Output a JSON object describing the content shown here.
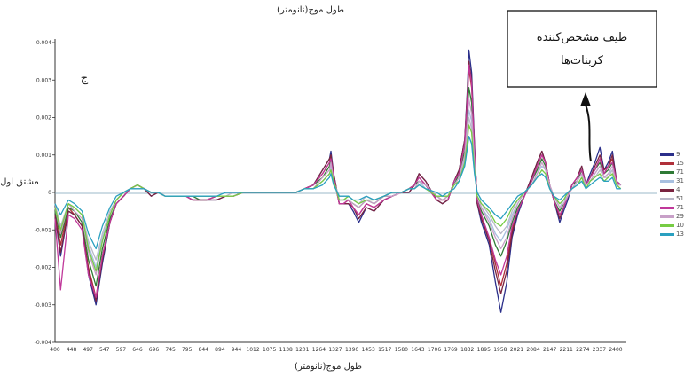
{
  "chart_data": {
    "type": "line",
    "top_caption": "طول موج(نانومتر)",
    "xlabel": "طول موج(نانومتر)",
    "ylabel": "مشتق اول",
    "panel_label": "ج",
    "annotation": [
      "طیف مشخص‌کننده",
      "کربنات‌ها"
    ],
    "xlim": [
      400,
      2450
    ],
    "ylim": [
      -0.004,
      0.004
    ],
    "x_ticks": [
      "400",
      "448",
      "497",
      "547",
      "597",
      "646",
      "696",
      "745",
      "795",
      "844",
      "894",
      "944",
      "1012",
      "1075",
      "1138",
      "1201",
      "1264",
      "1327",
      "1390",
      "1453",
      "1517",
      "1580",
      "1643",
      "1706",
      "1769",
      "1832",
      "1895",
      "1958",
      "2021",
      "2084",
      "2147",
      "2211",
      "2274",
      "2337",
      "2400"
    ],
    "y_ticks": [
      "0.004",
      "0.003",
      "0.002",
      "0.001",
      "0",
      "-0.001",
      "-0.002",
      "-0.003",
      "-0.004"
    ],
    "legend_entries": [
      "9",
      "15",
      "71",
      "31",
      "4",
      "51",
      "71",
      "29",
      "10",
      "13"
    ],
    "colors": [
      "#2b2f8a",
      "#b0303a",
      "#2f7a35",
      "#a8c0e0",
      "#7a2440",
      "#b8b8c8",
      "#c0389a",
      "#c8a0c8",
      "#77cc44",
      "#2aa0c0"
    ],
    "shared_x": [
      400,
      420,
      448,
      470,
      497,
      520,
      547,
      570,
      597,
      620,
      646,
      670,
      696,
      720,
      745,
      770,
      795,
      820,
      844,
      870,
      894,
      920,
      944,
      980,
      1012,
      1040,
      1075,
      1105,
      1138,
      1170,
      1201,
      1230,
      1264,
      1295,
      1327,
      1360,
      1385,
      1390,
      1400,
      1420,
      1435,
      1453,
      1470,
      1490,
      1517,
      1545,
      1580,
      1610,
      1643,
      1670,
      1690,
      1706,
      1730,
      1769,
      1790,
      1810,
      1832,
      1850,
      1870,
      1880,
      1885,
      1895,
      1905,
      1915,
      1930,
      1958,
      1980,
      2000,
      2021,
      2040,
      2060,
      2084,
      2110,
      2130,
      2147,
      2160,
      2175,
      2190,
      2211,
      2225,
      2240,
      2255,
      2274,
      2290,
      2305,
      2320,
      2337,
      2355,
      2370,
      2385,
      2400,
      2415,
      2430
    ],
    "series": [
      {
        "values": [
          -0.0006,
          -0.0017,
          -0.0005,
          -0.0006,
          -0.0009,
          -0.0022,
          -0.003,
          -0.0019,
          -0.0008,
          -0.0003,
          -0.0001,
          0.0001,
          0.0002,
          0.0001,
          -0.0001,
          0.0,
          -0.0001,
          -0.0001,
          -0.0001,
          -0.0001,
          -0.0002,
          -0.0002,
          -0.0002,
          -0.0002,
          -0.0001,
          -0.0001,
          0.0,
          0.0,
          0.0,
          0.0,
          0.0,
          0.0,
          0.0,
          0.0001,
          0.0002,
          0.0006,
          0.0009,
          0.0011,
          0.0005,
          -0.0003,
          -0.0003,
          -0.0003,
          -0.0005,
          -0.0008,
          -0.0004,
          -0.0005,
          -0.0002,
          -0.0001,
          0.0,
          0.0,
          0.0002,
          0.0005,
          0.0003,
          -0.0002,
          -0.0003,
          -0.0002,
          0.0003,
          0.0006,
          0.0014,
          0.0028,
          0.0038,
          0.0032,
          0.0013,
          -0.0003,
          -0.0008,
          -0.0014,
          -0.0024,
          -0.0032,
          -0.0024,
          -0.0012,
          -0.0006,
          -0.0001,
          0.0004,
          0.0008,
          0.0011,
          0.0008,
          0.0002,
          -0.0002,
          -0.0008,
          -0.0005,
          -0.0002,
          0.0002,
          0.0004,
          0.0007,
          0.0002,
          0.0005,
          0.0008,
          0.0012,
          0.0006,
          0.0008,
          0.0011,
          0.0003,
          0.0002
        ]
      },
      {
        "values": [
          -0.0006,
          -0.0014,
          -0.0004,
          -0.0006,
          -0.0009,
          -0.002,
          -0.0028,
          -0.0017,
          -0.0008,
          -0.0003,
          -0.0001,
          0.0001,
          0.0002,
          0.0001,
          0.0,
          0.0,
          -0.0001,
          -0.0001,
          -0.0001,
          -0.0001,
          -0.0002,
          -0.0002,
          -0.0002,
          -0.0001,
          -0.0001,
          -0.0001,
          0.0,
          0.0,
          0.0,
          0.0,
          0.0,
          0.0,
          0.0,
          0.0001,
          0.0002,
          0.0005,
          0.0008,
          0.001,
          0.0004,
          -0.0003,
          -0.0003,
          -0.0002,
          -0.0004,
          -0.0006,
          -0.0003,
          -0.0004,
          -0.0002,
          -0.0001,
          0.0,
          0.0001,
          0.0002,
          0.0004,
          0.0002,
          -0.0002,
          -0.0002,
          -0.0002,
          0.0003,
          0.0005,
          0.0013,
          0.0026,
          0.0033,
          0.0028,
          0.0011,
          -0.0002,
          -0.0007,
          -0.0012,
          -0.0019,
          -0.0025,
          -0.0019,
          -0.001,
          -0.0005,
          -0.0001,
          0.0003,
          0.0007,
          0.001,
          0.0008,
          0.0002,
          -0.0002,
          -0.0006,
          -0.0004,
          -0.0001,
          0.0002,
          0.0004,
          0.0006,
          0.0002,
          0.0004,
          0.0006,
          0.0009,
          0.0005,
          0.0007,
          0.0009,
          0.0003,
          0.0002
        ]
      },
      {
        "values": [
          -0.0005,
          -0.0012,
          -0.0004,
          -0.0005,
          -0.0008,
          -0.0018,
          -0.0025,
          -0.0015,
          -0.0007,
          -0.0003,
          -0.0001,
          0.0001,
          0.0002,
          0.0001,
          0.0,
          0.0,
          -0.0001,
          -0.0001,
          -0.0001,
          -0.0001,
          -0.0001,
          -0.0002,
          -0.0002,
          -0.0001,
          -0.0001,
          -0.0001,
          0.0,
          0.0,
          0.0,
          0.0,
          0.0,
          0.0,
          0.0,
          0.0001,
          0.0002,
          0.0004,
          0.0007,
          0.0009,
          0.0004,
          -0.0002,
          -0.0002,
          -0.0002,
          -0.0003,
          -0.0004,
          -0.0002,
          -0.0003,
          -0.0001,
          -0.0001,
          0.0,
          0.0001,
          0.0002,
          0.0003,
          0.0002,
          -0.0001,
          -0.0002,
          -0.0001,
          0.0002,
          0.0005,
          0.0011,
          0.0022,
          0.0028,
          0.0024,
          0.0009,
          -0.0002,
          -0.0005,
          -0.0009,
          -0.0014,
          -0.0017,
          -0.0013,
          -0.0008,
          -0.0004,
          -0.0001,
          0.0003,
          0.0006,
          0.0009,
          0.0007,
          0.0002,
          -0.0002,
          -0.0005,
          -0.0003,
          -0.0001,
          0.0002,
          0.0003,
          0.0006,
          0.0002,
          0.0004,
          0.0006,
          0.0008,
          0.0005,
          0.0006,
          0.0008,
          0.0003,
          0.0002
        ]
      },
      {
        "values": [
          -0.0004,
          -0.001,
          -0.0003,
          -0.0004,
          -0.0006,
          -0.0014,
          -0.002,
          -0.0012,
          -0.0006,
          -0.0002,
          0.0,
          0.0001,
          0.0002,
          0.0001,
          0.0,
          0.0,
          -0.0001,
          -0.0001,
          -0.0001,
          -0.0001,
          -0.0001,
          -0.0001,
          -0.0001,
          -0.0001,
          -0.0001,
          -0.0001,
          0.0,
          0.0,
          0.0,
          0.0,
          0.0,
          0.0,
          0.0,
          0.0001,
          0.0001,
          0.0003,
          0.0005,
          0.0007,
          0.0003,
          -0.0002,
          -0.0002,
          -0.0001,
          -0.0002,
          -0.0003,
          -0.0002,
          -0.0002,
          -0.0001,
          0.0,
          0.0,
          0.0001,
          0.0001,
          0.0003,
          0.0001,
          -0.0001,
          -0.0001,
          -0.0001,
          0.0002,
          0.0004,
          0.0009,
          0.0017,
          0.0022,
          0.0019,
          0.0007,
          -0.0001,
          -0.0004,
          -0.0007,
          -0.0011,
          -0.0013,
          -0.001,
          -0.0006,
          -0.0003,
          0.0,
          0.0002,
          0.0005,
          0.0007,
          0.0006,
          0.0002,
          -0.0001,
          -0.0004,
          -0.0002,
          -0.0001,
          0.0001,
          0.0003,
          0.0005,
          0.0002,
          0.0003,
          0.0005,
          0.0007,
          0.0004,
          0.0005,
          0.0006,
          0.0002,
          0.0002
        ]
      },
      {
        "values": [
          -0.0006,
          -0.0016,
          -0.0005,
          -0.0006,
          -0.0009,
          -0.0021,
          -0.0029,
          -0.0018,
          -0.0008,
          -0.0003,
          -0.0001,
          0.0001,
          0.0002,
          0.0001,
          -0.0001,
          0.0,
          -0.0001,
          -0.0001,
          -0.0001,
          -0.0001,
          -0.0002,
          -0.0002,
          -0.0002,
          -0.0002,
          -0.0001,
          -0.0001,
          0.0,
          0.0,
          0.0,
          0.0,
          0.0,
          0.0,
          0.0,
          0.0001,
          0.0002,
          0.0006,
          0.0009,
          0.001,
          0.0005,
          -0.0003,
          -0.0003,
          -0.0003,
          -0.0004,
          -0.0007,
          -0.0004,
          -0.0005,
          -0.0002,
          -0.0001,
          0.0,
          0.0,
          0.0002,
          0.0005,
          0.0003,
          -0.0002,
          -0.0003,
          -0.0002,
          0.0003,
          0.0006,
          0.0014,
          0.0027,
          0.0035,
          0.003,
          0.0012,
          -0.0003,
          -0.0007,
          -0.0013,
          -0.0021,
          -0.0027,
          -0.0021,
          -0.0011,
          -0.0005,
          -0.0001,
          0.0004,
          0.0008,
          0.0011,
          0.0008,
          0.0002,
          -0.0002,
          -0.0007,
          -0.0004,
          -0.0001,
          0.0002,
          0.0004,
          0.0007,
          0.0002,
          0.0004,
          0.0007,
          0.001,
          0.0006,
          0.0007,
          0.001,
          0.0003,
          0.0002
        ]
      },
      {
        "values": [
          -0.0003,
          -0.0009,
          -0.0003,
          -0.0004,
          -0.0006,
          -0.0013,
          -0.0018,
          -0.0011,
          -0.0005,
          -0.0002,
          0.0,
          0.0001,
          0.0001,
          0.0001,
          0.0,
          0.0,
          -0.0001,
          -0.0001,
          -0.0001,
          -0.0001,
          -0.0001,
          -0.0001,
          -0.0001,
          -0.0001,
          -0.0001,
          0.0,
          0.0,
          0.0,
          0.0,
          0.0,
          0.0,
          0.0,
          0.0,
          0.0001,
          0.0001,
          0.0003,
          0.0005,
          0.0006,
          0.0003,
          -0.0001,
          -0.0001,
          -0.0001,
          -0.0002,
          -0.0003,
          -0.0001,
          -0.0002,
          -0.0001,
          0.0,
          0.0,
          0.0001,
          0.0001,
          0.0002,
          0.0001,
          -0.0001,
          -0.0001,
          -0.0001,
          0.0002,
          0.0003,
          0.0008,
          0.0015,
          0.002,
          0.0017,
          0.0006,
          -0.0001,
          -0.0003,
          -0.0006,
          -0.0009,
          -0.0011,
          -0.0009,
          -0.0005,
          -0.0002,
          0.0,
          0.0002,
          0.0004,
          0.0006,
          0.0005,
          0.0002,
          -0.0001,
          -0.0003,
          -0.0002,
          0.0,
          0.0001,
          0.0002,
          0.0004,
          0.0001,
          0.0003,
          0.0004,
          0.0006,
          0.0004,
          0.0004,
          0.0006,
          0.0002,
          0.0001
        ]
      },
      {
        "values": [
          -0.0007,
          -0.0026,
          -0.0006,
          -0.0007,
          -0.001,
          -0.0022,
          -0.0028,
          -0.0017,
          -0.0008,
          -0.0003,
          -0.0001,
          0.0001,
          0.0002,
          0.0001,
          0.0,
          0.0,
          -0.0001,
          -0.0001,
          -0.0001,
          -0.0001,
          -0.0002,
          -0.0002,
          -0.0002,
          -0.0001,
          -0.0001,
          -0.0001,
          0.0,
          0.0,
          0.0,
          0.0,
          0.0,
          0.0,
          0.0,
          0.0001,
          0.0002,
          0.0005,
          0.0008,
          0.0009,
          0.0004,
          -0.0003,
          -0.0003,
          -0.0002,
          -0.0004,
          -0.0006,
          -0.0003,
          -0.0004,
          -0.0002,
          -0.0001,
          0.0,
          0.0001,
          0.0002,
          0.0004,
          0.0002,
          -0.0002,
          -0.0002,
          -0.0002,
          0.0003,
          0.0005,
          0.0013,
          0.0025,
          0.0034,
          0.0029,
          0.0011,
          -0.0002,
          -0.0006,
          -0.0012,
          -0.0018,
          -0.0022,
          -0.0017,
          -0.0009,
          -0.0005,
          -0.0001,
          0.0003,
          0.0007,
          0.001,
          0.0008,
          0.0002,
          -0.0002,
          -0.0006,
          -0.0004,
          -0.0001,
          0.0002,
          0.0004,
          0.0006,
          0.0002,
          0.0004,
          0.0006,
          0.0009,
          0.0005,
          0.0007,
          0.0008,
          0.0003,
          0.0002
        ]
      },
      {
        "values": [
          -0.0004,
          -0.0011,
          -0.0003,
          -0.0005,
          -0.0007,
          -0.0016,
          -0.0022,
          -0.0013,
          -0.0006,
          -0.0002,
          0.0,
          0.0001,
          0.0002,
          0.0001,
          0.0,
          0.0,
          -0.0001,
          -0.0001,
          -0.0001,
          -0.0001,
          -0.0001,
          -0.0001,
          -0.0001,
          -0.0001,
          -0.0001,
          -0.0001,
          0.0,
          0.0,
          0.0,
          0.0,
          0.0,
          0.0,
          0.0,
          0.0001,
          0.0001,
          0.0004,
          0.0006,
          0.0008,
          0.0003,
          -0.0002,
          -0.0002,
          -0.0002,
          -0.0003,
          -0.0004,
          -0.0002,
          -0.0003,
          -0.0001,
          -0.0001,
          0.0,
          0.0001,
          0.0001,
          0.0003,
          0.0002,
          -0.0001,
          -0.0002,
          -0.0001,
          0.0002,
          0.0004,
          0.001,
          0.0019,
          0.0025,
          0.0021,
          0.0008,
          -0.0001,
          -0.0004,
          -0.0008,
          -0.0012,
          -0.0015,
          -0.0012,
          -0.0007,
          -0.0003,
          0.0,
          0.0002,
          0.0005,
          0.0008,
          0.0006,
          0.0002,
          -0.0001,
          -0.0004,
          -0.0003,
          -0.0001,
          0.0001,
          0.0003,
          0.0005,
          0.0002,
          0.0003,
          0.0005,
          0.0007,
          0.0004,
          0.0005,
          0.0007,
          0.0002,
          0.0002
        ]
      },
      {
        "values": [
          -0.0004,
          -0.001,
          -0.0003,
          -0.0004,
          -0.0006,
          -0.0015,
          -0.0021,
          -0.0013,
          -0.0006,
          -0.0002,
          0.0,
          0.0001,
          0.0002,
          0.0001,
          0.0,
          0.0,
          -0.0001,
          -0.0001,
          -0.0001,
          -0.0001,
          -0.0001,
          -0.0001,
          -0.0001,
          -0.0001,
          -0.0001,
          -0.0001,
          0.0,
          0.0,
          0.0,
          0.0,
          0.0,
          0.0,
          0.0,
          0.0001,
          0.0001,
          0.0003,
          0.0005,
          0.0006,
          0.0003,
          -0.0002,
          -0.0002,
          -0.0001,
          -0.0002,
          -0.0003,
          -0.0002,
          -0.0002,
          -0.0001,
          0.0,
          0.0,
          0.0001,
          0.0001,
          0.0002,
          0.0001,
          -0.0001,
          -0.0001,
          -0.0001,
          0.0002,
          0.0003,
          0.0008,
          0.0014,
          0.0018,
          0.0016,
          0.0006,
          -0.0001,
          -0.0003,
          -0.0005,
          -0.0008,
          -0.0009,
          -0.0007,
          -0.0004,
          -0.0002,
          0.0,
          0.0002,
          0.0004,
          0.0006,
          0.0005,
          0.0001,
          -0.0001,
          -0.0003,
          -0.0002,
          0.0,
          0.0001,
          0.0002,
          0.0004,
          0.0001,
          0.0003,
          0.0004,
          0.0005,
          0.0003,
          0.0004,
          0.0005,
          0.0002,
          0.0001
        ]
      },
      {
        "values": [
          -0.0003,
          -0.0006,
          -0.0002,
          -0.0003,
          -0.0005,
          -0.0011,
          -0.0015,
          -0.0009,
          -0.0004,
          -0.0001,
          0.0,
          0.0001,
          0.0001,
          0.0001,
          0.0,
          0.0,
          -0.0001,
          -0.0001,
          -0.0001,
          -0.0001,
          -0.0001,
          -0.0001,
          -0.0001,
          -0.0001,
          0.0,
          0.0,
          0.0,
          0.0,
          0.0,
          0.0,
          0.0,
          0.0,
          0.0,
          0.0001,
          0.0001,
          0.0002,
          0.0004,
          0.0005,
          0.0002,
          -0.0001,
          -0.0001,
          -0.0001,
          -0.0002,
          -0.0002,
          -0.0001,
          -0.0002,
          -0.0001,
          0.0,
          0.0,
          0.0001,
          0.0001,
          0.0002,
          0.0001,
          0.0,
          -0.0001,
          0.0,
          0.0001,
          0.0003,
          0.0007,
          0.0012,
          0.0015,
          0.0013,
          0.0005,
          0.0,
          -0.0002,
          -0.0004,
          -0.0006,
          -0.0007,
          -0.0005,
          -0.0003,
          -0.0001,
          0.0,
          0.0002,
          0.0004,
          0.0005,
          0.0004,
          0.0001,
          -0.0001,
          -0.0002,
          -0.0001,
          0.0,
          0.0001,
          0.0002,
          0.0003,
          0.0001,
          0.0002,
          0.0003,
          0.0004,
          0.0003,
          0.0003,
          0.0004,
          0.0001,
          0.0001
        ]
      }
    ]
  }
}
